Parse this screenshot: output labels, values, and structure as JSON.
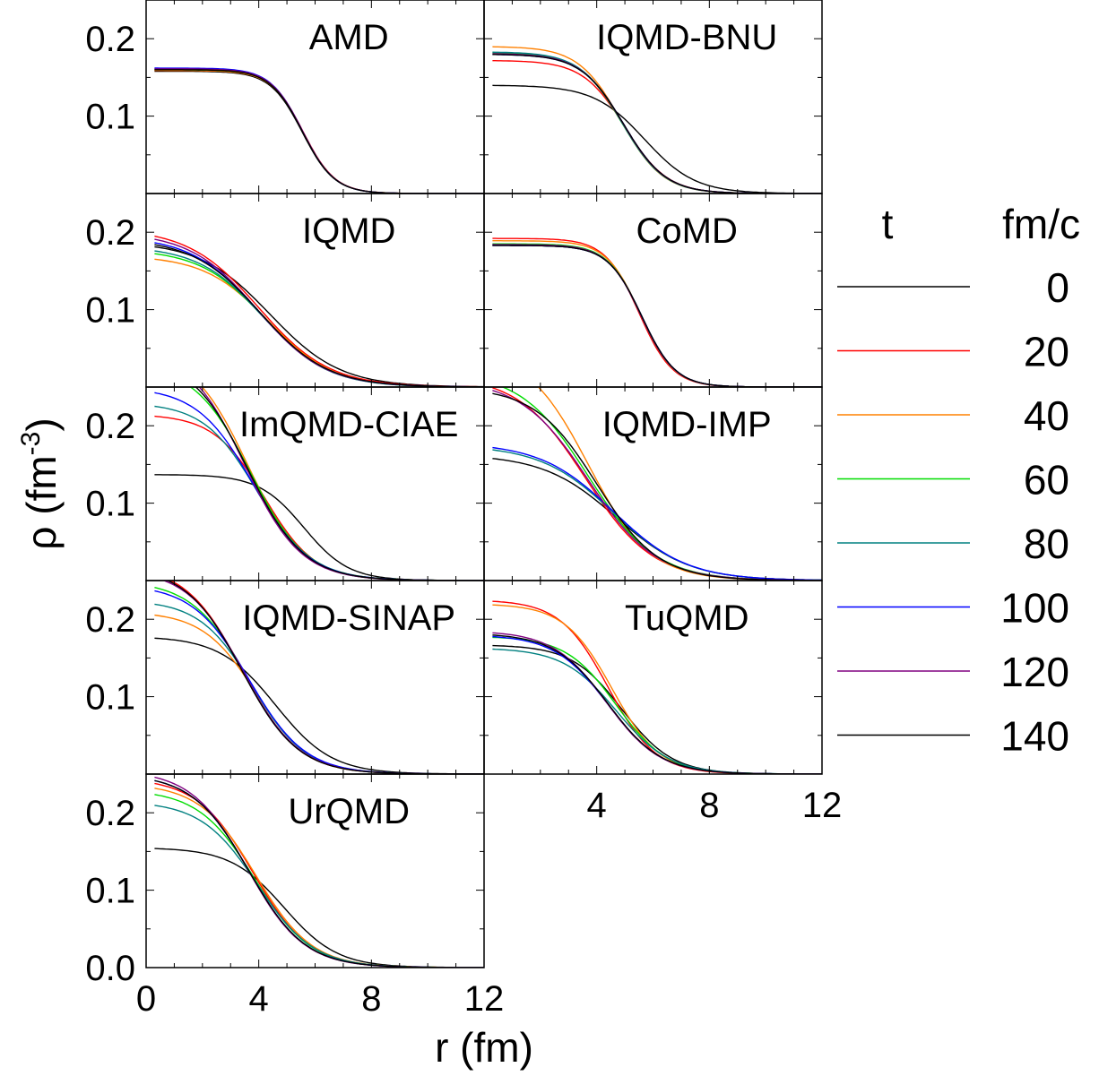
{
  "chart_data": {
    "type": "line",
    "xlabel": "r (fm)",
    "ylabel_main": "ρ (fm",
    "ylabel_sup": "-3",
    "ylabel_close": ")",
    "xlim": [
      0,
      12
    ],
    "ylim": [
      0,
      0.25
    ],
    "xticks": [
      {
        "value": 0,
        "label": "0"
      },
      {
        "value": 4,
        "label": "4"
      },
      {
        "value": 8,
        "label": "8"
      },
      {
        "value": 12,
        "label": "12"
      }
    ],
    "xticks_right": [
      {
        "value": 4,
        "label": "4"
      },
      {
        "value": 8,
        "label": "8"
      },
      {
        "value": 12,
        "label": "12"
      }
    ],
    "yticks": [
      {
        "value": 0.1,
        "label": "0.1"
      },
      {
        "value": 0.2,
        "label": "0.2"
      }
    ],
    "yticks_bottom": [
      {
        "value": 0.0,
        "label": "0.0"
      },
      {
        "value": 0.1,
        "label": "0.1"
      },
      {
        "value": 0.2,
        "label": "0.2"
      }
    ],
    "legend": {
      "header_t": "t",
      "header_unit": "fm/c",
      "entries": [
        {
          "label": "0",
          "color": "#000000"
        },
        {
          "label": "20",
          "color": "#ff0000"
        },
        {
          "label": "40",
          "color": "#ff8000"
        },
        {
          "label": "60",
          "color": "#00dd00"
        },
        {
          "label": "80",
          "color": "#008080"
        },
        {
          "label": "100",
          "color": "#0000ff"
        },
        {
          "label": "120",
          "color": "#800080"
        },
        {
          "label": "140",
          "color": "#000000"
        }
      ]
    },
    "panels": [
      {
        "title": "AMD",
        "row": 0,
        "col": 0,
        "series": [
          {
            "t": 0,
            "rho0": 0.158,
            "R": 5.55,
            "a": 0.57
          },
          {
            "t": 20,
            "rho0": 0.159,
            "R": 5.58,
            "a": 0.57
          },
          {
            "t": 40,
            "rho0": 0.159,
            "R": 5.57,
            "a": 0.57
          },
          {
            "t": 60,
            "rho0": 0.16,
            "R": 5.56,
            "a": 0.57
          },
          {
            "t": 80,
            "rho0": 0.161,
            "R": 5.55,
            "a": 0.57
          },
          {
            "t": 100,
            "rho0": 0.162,
            "R": 5.55,
            "a": 0.57
          },
          {
            "t": 120,
            "rho0": 0.161,
            "R": 5.56,
            "a": 0.57
          },
          {
            "t": 140,
            "rho0": 0.16,
            "R": 5.55,
            "a": 0.57
          }
        ]
      },
      {
        "title": "IQMD-BNU",
        "row": 0,
        "col": 1,
        "series": [
          {
            "t": 0,
            "rho0": 0.14,
            "R": 5.7,
            "a": 0.9
          },
          {
            "t": 20,
            "rho0": 0.172,
            "R": 5.0,
            "a": 0.75
          },
          {
            "t": 40,
            "rho0": 0.19,
            "R": 4.85,
            "a": 0.75
          },
          {
            "t": 60,
            "rho0": 0.182,
            "R": 4.9,
            "a": 0.75
          },
          {
            "t": 80,
            "rho0": 0.183,
            "R": 4.9,
            "a": 0.75
          },
          {
            "t": 100,
            "rho0": 0.18,
            "R": 4.95,
            "a": 0.75
          },
          {
            "t": 120,
            "rho0": 0.181,
            "R": 4.93,
            "a": 0.75
          },
          {
            "t": 140,
            "rho0": 0.18,
            "R": 4.95,
            "a": 0.75
          }
        ]
      },
      {
        "title": "IQMD",
        "row": 1,
        "col": 0,
        "series": [
          {
            "t": 0,
            "rho0": 0.188,
            "R": 4.4,
            "a": 1.25
          },
          {
            "t": 20,
            "rho0": 0.205,
            "R": 4.0,
            "a": 1.25
          },
          {
            "t": 40,
            "rho0": 0.17,
            "R": 4.35,
            "a": 1.15
          },
          {
            "t": 60,
            "rho0": 0.178,
            "R": 4.2,
            "a": 1.15
          },
          {
            "t": 80,
            "rho0": 0.182,
            "R": 4.15,
            "a": 1.15
          },
          {
            "t": 100,
            "rho0": 0.195,
            "R": 4.0,
            "a": 1.2
          },
          {
            "t": 120,
            "rho0": 0.2,
            "R": 3.95,
            "a": 1.2
          },
          {
            "t": 140,
            "rho0": 0.192,
            "R": 4.05,
            "a": 1.2
          }
        ]
      },
      {
        "title": "CoMD",
        "row": 1,
        "col": 1,
        "series": [
          {
            "t": 0,
            "rho0": 0.183,
            "R": 5.6,
            "a": 0.6
          },
          {
            "t": 20,
            "rho0": 0.192,
            "R": 5.5,
            "a": 0.6
          },
          {
            "t": 40,
            "rho0": 0.189,
            "R": 5.55,
            "a": 0.6
          },
          {
            "t": 60,
            "rho0": 0.185,
            "R": 5.58,
            "a": 0.6
          },
          {
            "t": 80,
            "rho0": 0.184,
            "R": 5.58,
            "a": 0.6
          },
          {
            "t": 100,
            "rho0": 0.183,
            "R": 5.6,
            "a": 0.6
          },
          {
            "t": 120,
            "rho0": 0.184,
            "R": 5.58,
            "a": 0.6
          },
          {
            "t": 140,
            "rho0": 0.183,
            "R": 5.6,
            "a": 0.6
          }
        ]
      },
      {
        "title": "ImQMD-CIAE",
        "row": 2,
        "col": 0,
        "series": [
          {
            "t": 0,
            "rho0": 0.137,
            "R": 5.6,
            "a": 0.8
          },
          {
            "t": 20,
            "rho0": 0.215,
            "R": 4.2,
            "a": 0.9
          },
          {
            "t": 40,
            "rho0": 0.3,
            "R": 3.6,
            "a": 1.0
          },
          {
            "t": 60,
            "rho0": 0.28,
            "R": 3.7,
            "a": 1.0
          },
          {
            "t": 80,
            "rho0": 0.23,
            "R": 3.95,
            "a": 0.95
          },
          {
            "t": 100,
            "rho0": 0.25,
            "R": 3.8,
            "a": 1.0
          },
          {
            "t": 120,
            "rho0": 0.3,
            "R": 3.5,
            "a": 1.0
          },
          {
            "t": 140,
            "rho0": 0.29,
            "R": 3.6,
            "a": 1.0
          }
        ]
      },
      {
        "title": "IQMD-IMP",
        "row": 2,
        "col": 1,
        "series": [
          {
            "t": 0,
            "rho0": 0.163,
            "R": 4.7,
            "a": 1.3
          },
          {
            "t": 20,
            "rho0": 0.265,
            "R": 3.6,
            "a": 1.2
          },
          {
            "t": 40,
            "rho0": 0.3,
            "R": 3.7,
            "a": 1.1
          },
          {
            "t": 60,
            "rho0": 0.27,
            "R": 3.7,
            "a": 1.2
          },
          {
            "t": 80,
            "rho0": 0.175,
            "R": 4.6,
            "a": 1.3
          },
          {
            "t": 100,
            "rho0": 0.178,
            "R": 4.6,
            "a": 1.3
          },
          {
            "t": 120,
            "rho0": 0.26,
            "R": 3.7,
            "a": 1.2
          },
          {
            "t": 140,
            "rho0": 0.25,
            "R": 4.0,
            "a": 1.1
          }
        ]
      },
      {
        "title": "IQMD-SINAP",
        "row": 3,
        "col": 0,
        "series": [
          {
            "t": 0,
            "rho0": 0.178,
            "R": 4.6,
            "a": 1.0
          },
          {
            "t": 20,
            "rho0": 0.27,
            "R": 3.4,
            "a": 1.0
          },
          {
            "t": 40,
            "rho0": 0.21,
            "R": 3.9,
            "a": 0.95
          },
          {
            "t": 60,
            "rho0": 0.25,
            "R": 3.6,
            "a": 1.0
          },
          {
            "t": 80,
            "rho0": 0.225,
            "R": 3.8,
            "a": 0.95
          },
          {
            "t": 100,
            "rho0": 0.245,
            "R": 3.65,
            "a": 1.0
          },
          {
            "t": 120,
            "rho0": 0.265,
            "R": 3.45,
            "a": 1.0
          },
          {
            "t": 140,
            "rho0": 0.268,
            "R": 3.4,
            "a": 1.0
          }
        ]
      },
      {
        "title": "TuQMD",
        "row": 3,
        "col": 1,
        "series": [
          {
            "t": 0,
            "rho0": 0.167,
            "R": 4.9,
            "a": 0.9
          },
          {
            "t": 20,
            "rho0": 0.225,
            "R": 4.4,
            "a": 0.85
          },
          {
            "t": 40,
            "rho0": 0.22,
            "R": 4.55,
            "a": 0.85
          },
          {
            "t": 60,
            "rho0": 0.178,
            "R": 4.7,
            "a": 0.9
          },
          {
            "t": 80,
            "rho0": 0.163,
            "R": 4.7,
            "a": 0.95
          },
          {
            "t": 100,
            "rho0": 0.18,
            "R": 4.4,
            "a": 0.95
          },
          {
            "t": 120,
            "rho0": 0.185,
            "R": 4.35,
            "a": 0.95
          },
          {
            "t": 140,
            "rho0": 0.182,
            "R": 4.4,
            "a": 0.95
          }
        ]
      },
      {
        "title": "UrQMD",
        "row": 4,
        "col": 0,
        "series": [
          {
            "t": 0,
            "rho0": 0.155,
            "R": 4.9,
            "a": 0.95
          },
          {
            "t": 20,
            "rho0": 0.245,
            "R": 3.8,
            "a": 1.0
          },
          {
            "t": 40,
            "rho0": 0.238,
            "R": 3.9,
            "a": 1.0
          },
          {
            "t": 60,
            "rho0": 0.23,
            "R": 3.85,
            "a": 1.0
          },
          {
            "t": 80,
            "rho0": 0.215,
            "R": 3.95,
            "a": 1.0
          },
          {
            "t": 100,
            "rho0": 0.25,
            "R": 3.65,
            "a": 1.0
          },
          {
            "t": 120,
            "rho0": 0.255,
            "R": 3.6,
            "a": 1.0
          },
          {
            "t": 140,
            "rho0": 0.25,
            "R": 3.65,
            "a": 1.0
          }
        ]
      }
    ]
  }
}
